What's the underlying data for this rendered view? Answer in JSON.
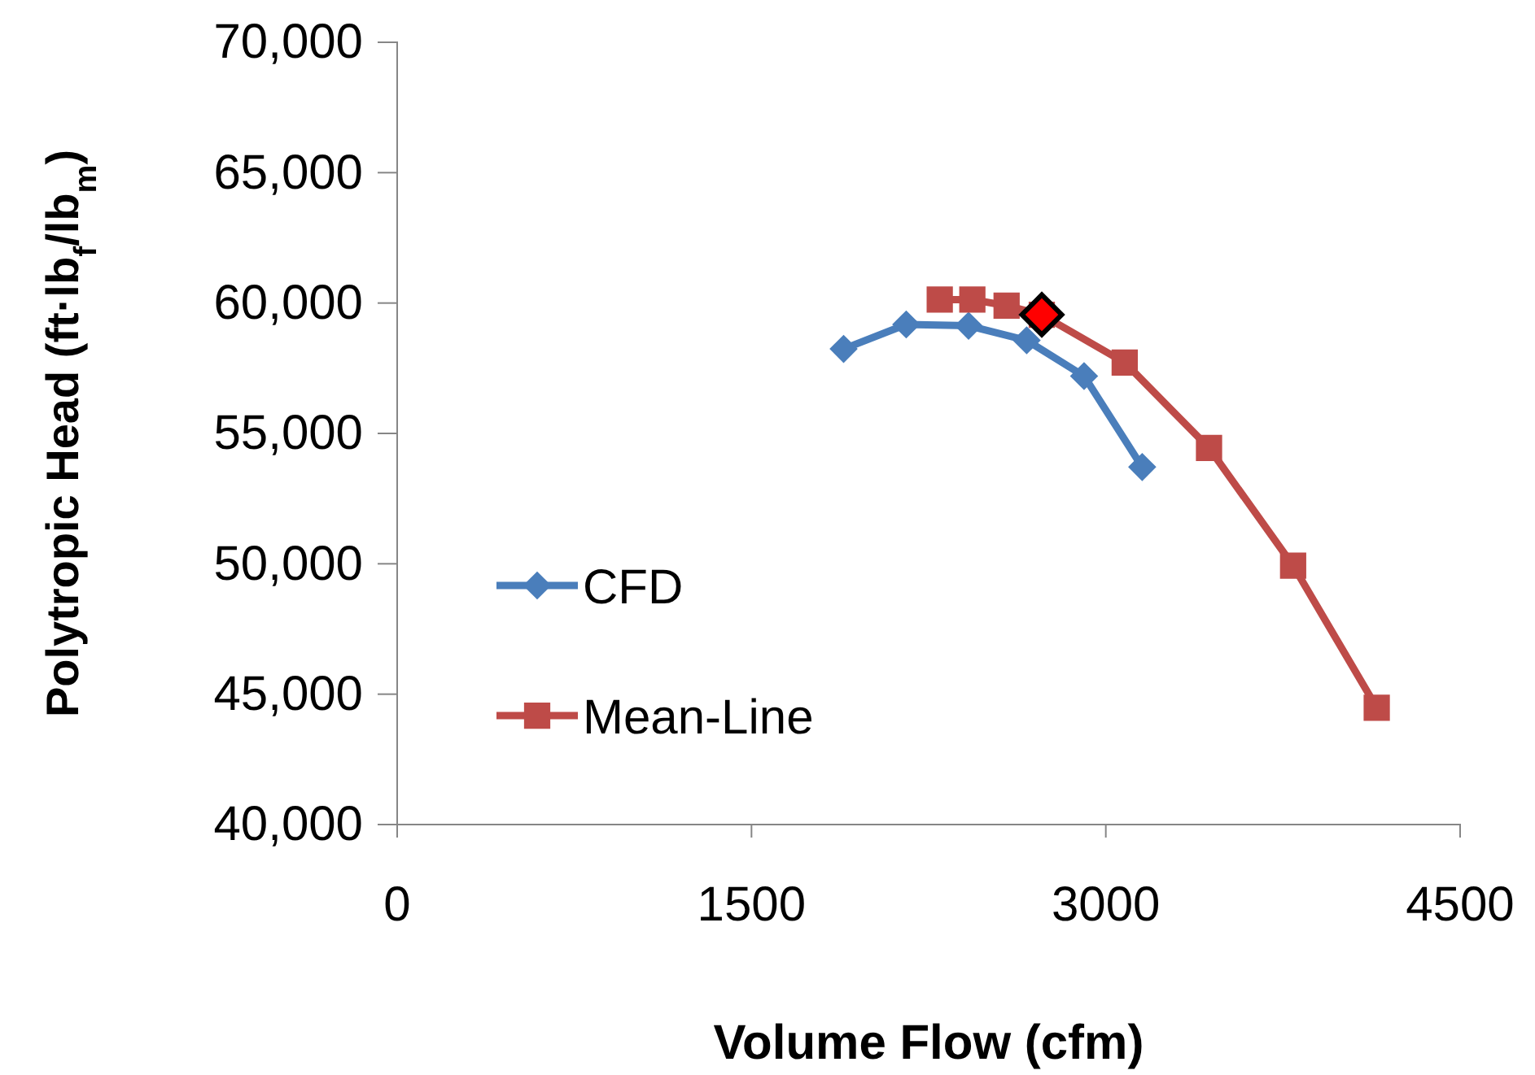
{
  "chart_data": {
    "type": "line",
    "xlabel": "Volume Flow (cfm)",
    "ylabel": "Polytropic Head  (ft·lb$_{f}$/lb$_{m}$)",
    "xlim": [
      0,
      4500
    ],
    "xticks": [
      0,
      1500,
      3000,
      4500
    ],
    "ylim": [
      40000,
      70000
    ],
    "yticks": [
      {
        "value": 40000,
        "label": "40,000"
      },
      {
        "value": 45000,
        "label": "45,000"
      },
      {
        "value": 50000,
        "label": "50,000"
      },
      {
        "value": 55000,
        "label": "55,000"
      },
      {
        "value": 60000,
        "label": "60,000"
      },
      {
        "value": 65000,
        "label": "65,000"
      },
      {
        "value": 70000,
        "label": "70,000"
      }
    ],
    "grid": false,
    "legend": "left",
    "line_style": "solid",
    "series": [
      {
        "name": "CFD",
        "color": "#4a7ebb",
        "marker": "diamond",
        "x": [
          1890,
          2155,
          2419,
          2665,
          2908,
          3154
        ],
        "values": [
          58240,
          59180,
          59130,
          58570,
          57200,
          53710
        ]
      },
      {
        "name": "Mean-Line",
        "color": "#be4b48",
        "marker": "square",
        "x": [
          2297,
          2435,
          2580,
          2729,
          3080,
          3437,
          3793,
          4147
        ],
        "values": [
          60130,
          60130,
          59900,
          59550,
          57720,
          54440,
          49930,
          44480
        ]
      },
      {
        "type": "scatter",
        "color": "#ff0000",
        "marker": "diamond",
        "x": [
          2729
        ],
        "values": [
          59550
        ]
      }
    ]
  }
}
